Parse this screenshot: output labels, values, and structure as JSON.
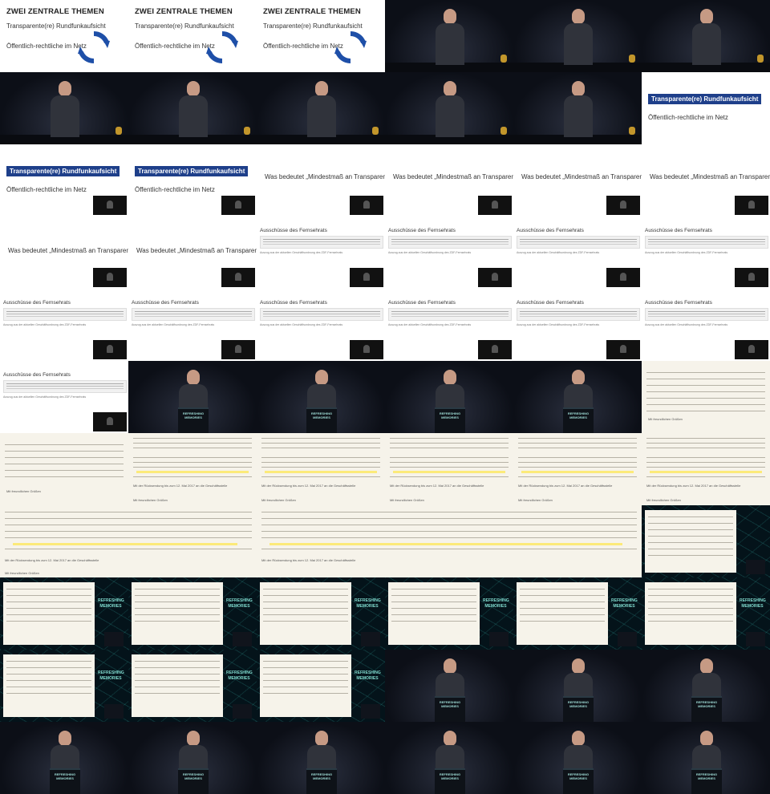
{
  "slides": {
    "zwei_title": "ZWEI ZENTRALE THEMEN",
    "rundfunk": "Transparente(re) Rundfunkaufsicht",
    "oeffentlich": "Öffentlich-rechtliche im Netz",
    "mindest": "Was bedeutet „Mindestmaß an Transparenz“?",
    "ausschuesse": "Ausschüsse des Fernsehrats",
    "auszug": "Auszug aus der aktuellen Geschäftsordnung des ZDF-Fernsehrats"
  },
  "document": {
    "date_phrase": "Mit der Rücksendung bis zum 12. Mai 2017 an die Geschäftsstelle",
    "salutation": "Mit freundlichen Grüßen"
  },
  "podium_logo": "REFRESHING MEMORIES",
  "colors": {
    "accent_blue": "#1e3f8a",
    "highlight": "#ffe64a"
  }
}
